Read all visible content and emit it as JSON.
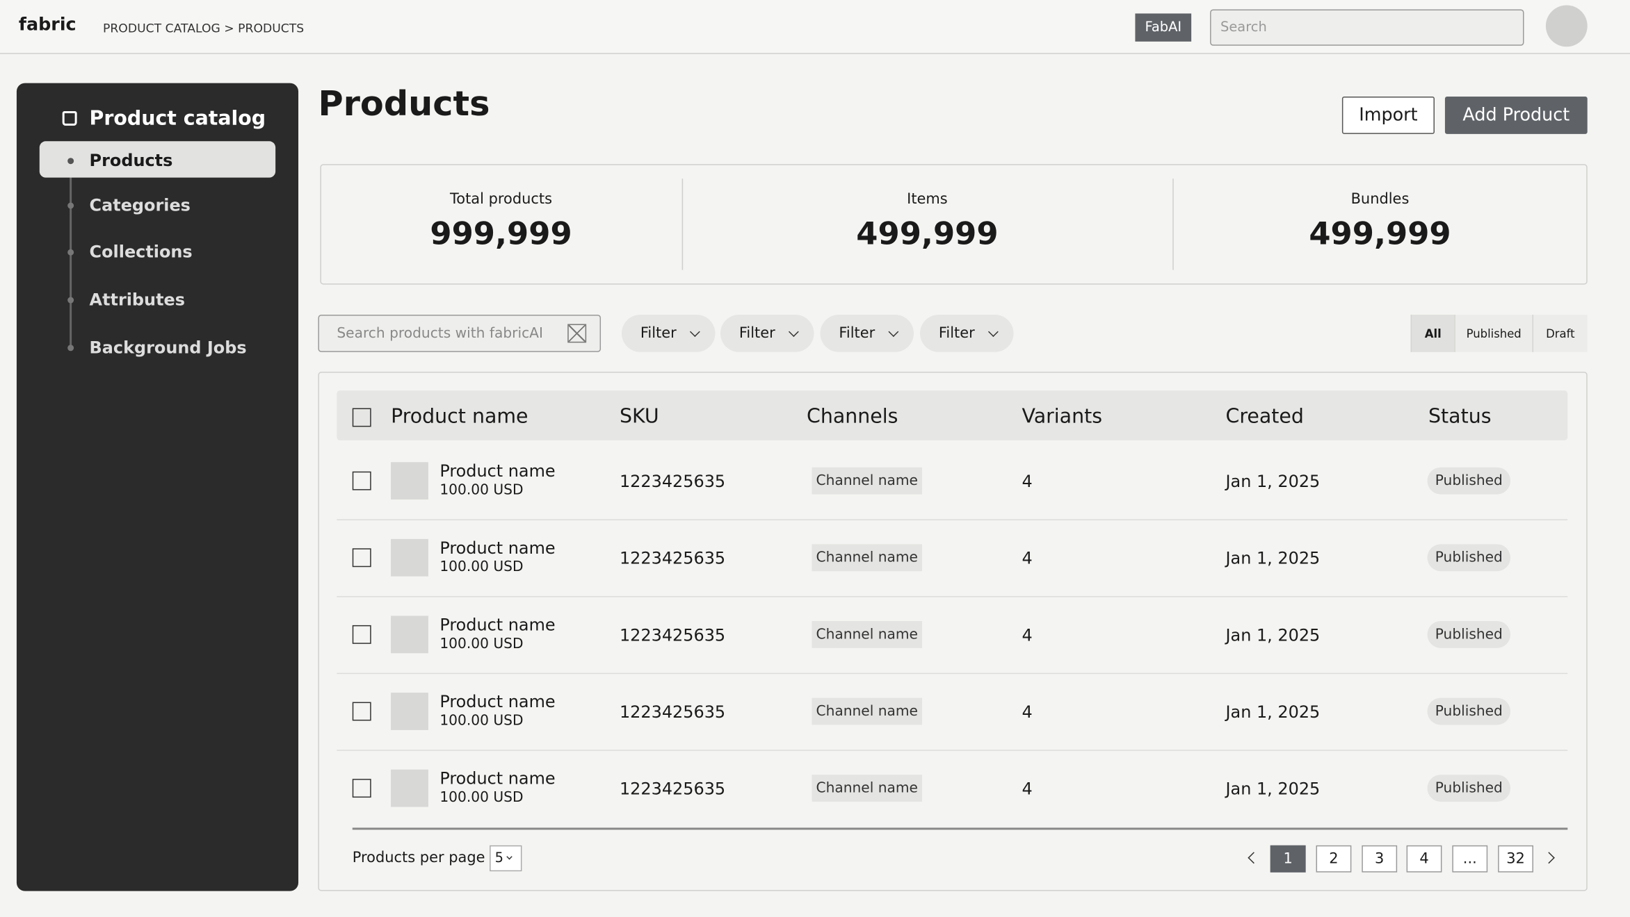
{
  "header": {
    "logo": "fabric",
    "breadcrumb": "PRODUCT CATALOG > PRODUCTS",
    "ai_button": "FabAI",
    "search_placeholder": "Search"
  },
  "sidebar": {
    "title": "Product catalog",
    "items": [
      "Products",
      "Categories",
      "Collections",
      "Attributes",
      "Background Jobs"
    ],
    "active": 0
  },
  "page": {
    "title": "Products",
    "buttons": [
      "Import",
      "Add Product"
    ]
  },
  "stats": [
    {
      "label": "Total products",
      "value": "999,999"
    },
    {
      "label": "Items",
      "value": "499,999"
    },
    {
      "label": "Bundles",
      "value": "499,999"
    }
  ],
  "toolbar": {
    "search_placeholder": "Search products with fabricAI",
    "filters": [
      "Filter",
      "Filter",
      "Filter",
      "Filter"
    ],
    "tabs": [
      "All",
      "Published",
      "Draft"
    ],
    "active_tab": 0
  },
  "table": {
    "columns": [
      "Product name",
      "SKU",
      "Channels",
      "Variants",
      "Created",
      "Status"
    ],
    "rows": [
      {
        "name": "Product name",
        "price": "100.00 USD",
        "sku": "1223425635",
        "channel": "Channel name",
        "variants": "4",
        "created": "Jan 1, 2025",
        "status": "Published"
      },
      {
        "name": "Product name",
        "price": "100.00 USD",
        "sku": "1223425635",
        "channel": "Channel name",
        "variants": "4",
        "created": "Jan 1, 2025",
        "status": "Published"
      },
      {
        "name": "Product name",
        "price": "100.00 USD",
        "sku": "1223425635",
        "channel": "Channel name",
        "variants": "4",
        "created": "Jan 1, 2025",
        "status": "Published"
      },
      {
        "name": "Product name",
        "price": "100.00 USD",
        "sku": "1223425635",
        "channel": "Channel name",
        "variants": "4",
        "created": "Jan 1, 2025",
        "status": "Published"
      },
      {
        "name": "Product name",
        "price": "100.00 USD",
        "sku": "1223425635",
        "channel": "Channel name",
        "variants": "4",
        "created": "Jan 1, 2025",
        "status": "Published"
      }
    ]
  },
  "pagination": {
    "label": "Products per page",
    "per_page": "5",
    "pages": [
      "1",
      "2",
      "3",
      "4",
      "...",
      "32"
    ],
    "current": 0
  }
}
